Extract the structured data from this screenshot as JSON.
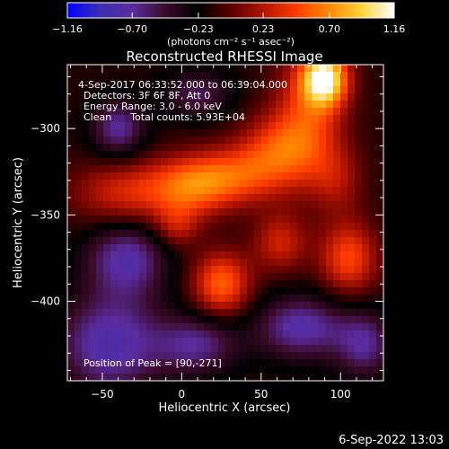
{
  "chart_data": {
    "type": "heatmap",
    "title": "Reconstructed RHESSI Image",
    "xlabel": "Heliocentric X (arcsec)",
    "ylabel": "Heliocentric Y (arcsec)",
    "xlim": [
      -72,
      127
    ],
    "ylim": [
      -446,
      -263
    ],
    "x_ticks": [
      -50,
      0,
      50,
      100
    ],
    "x_tick_labels": [
      "−50",
      "0",
      "50",
      "100"
    ],
    "y_ticks": [
      -300,
      -350,
      -400
    ],
    "y_tick_labels": [
      "−300",
      "−350",
      "−400"
    ],
    "colorbar": {
      "min": -1.16,
      "max": 1.16,
      "ticks": [
        -1.16,
        -0.7,
        -0.23,
        0.23,
        0.7,
        1.16
      ],
      "tick_labels": [
        "−1.16",
        "−0.70",
        "−0.23",
        "0.23",
        "0.70",
        "1.16"
      ],
      "unit_label": "(photons cm⁻² s⁻¹ asec⁻²)",
      "colormap": [
        "#0000ff",
        "#3b2fb2",
        "#5a2c9e",
        "#3a0a28",
        "#000000",
        "#5a0000",
        "#b31400",
        "#ff3c00",
        "#ff8a00",
        "#ffd23c",
        "#ffffff"
      ]
    },
    "info_lines": [
      "4-Sep-2017 06:33:52.000 to 06:39:04.000",
      "Detectors: 3F 6F 8F, Att 0",
      "Energy Range: 3.0 - 6.0 keV",
      "Clean      Total counts: 5.93E+04"
    ],
    "peak_label": "Position of Peak = [90,-271]",
    "peak": [
      90,
      -271
    ],
    "sources": [
      {
        "x": 90,
        "y": -271,
        "sx": 10,
        "sy": 11,
        "amp": 1.16
      },
      {
        "x": 80,
        "y": -292,
        "sx": 16,
        "sy": 26,
        "amp": 0.55
      },
      {
        "x": 60,
        "y": -312,
        "sx": 18,
        "sy": 14,
        "amp": 0.5
      },
      {
        "x": 30,
        "y": -328,
        "sx": 24,
        "sy": 12,
        "amp": 0.6
      },
      {
        "x": 5,
        "y": -335,
        "sx": 18,
        "sy": 12,
        "amp": 0.45
      },
      {
        "x": -35,
        "y": -338,
        "sx": 24,
        "sy": 14,
        "amp": 0.5
      },
      {
        "x": -3,
        "y": -357,
        "sx": 10,
        "sy": 9,
        "amp": 0.35
      },
      {
        "x": 25,
        "y": -390,
        "sx": 13,
        "sy": 13,
        "amp": 0.72
      },
      {
        "x": 105,
        "y": -375,
        "sx": 13,
        "sy": 15,
        "amp": 0.62
      },
      {
        "x": 62,
        "y": -366,
        "sx": 12,
        "sy": 12,
        "amp": 0.45
      },
      {
        "x": 98,
        "y": -330,
        "sx": 12,
        "sy": 14,
        "amp": 0.3
      },
      {
        "x": -40,
        "y": -300,
        "sx": 12,
        "sy": 12,
        "amp": -0.55
      },
      {
        "x": -35,
        "y": -375,
        "sx": 18,
        "sy": 16,
        "amp": -0.6
      },
      {
        "x": -45,
        "y": -425,
        "sx": 24,
        "sy": 20,
        "amp": -0.65
      },
      {
        "x": 10,
        "y": -280,
        "sx": 15,
        "sy": 10,
        "amp": -0.4
      },
      {
        "x": 75,
        "y": -415,
        "sx": 20,
        "sy": 13,
        "amp": -0.6
      },
      {
        "x": 10,
        "y": -425,
        "sx": 18,
        "sy": 12,
        "amp": -0.5
      },
      {
        "x": 115,
        "y": -425,
        "sx": 13,
        "sy": 14,
        "amp": -0.5
      }
    ]
  },
  "footer": {
    "timestamp": "6-Sep-2022 13:03"
  }
}
